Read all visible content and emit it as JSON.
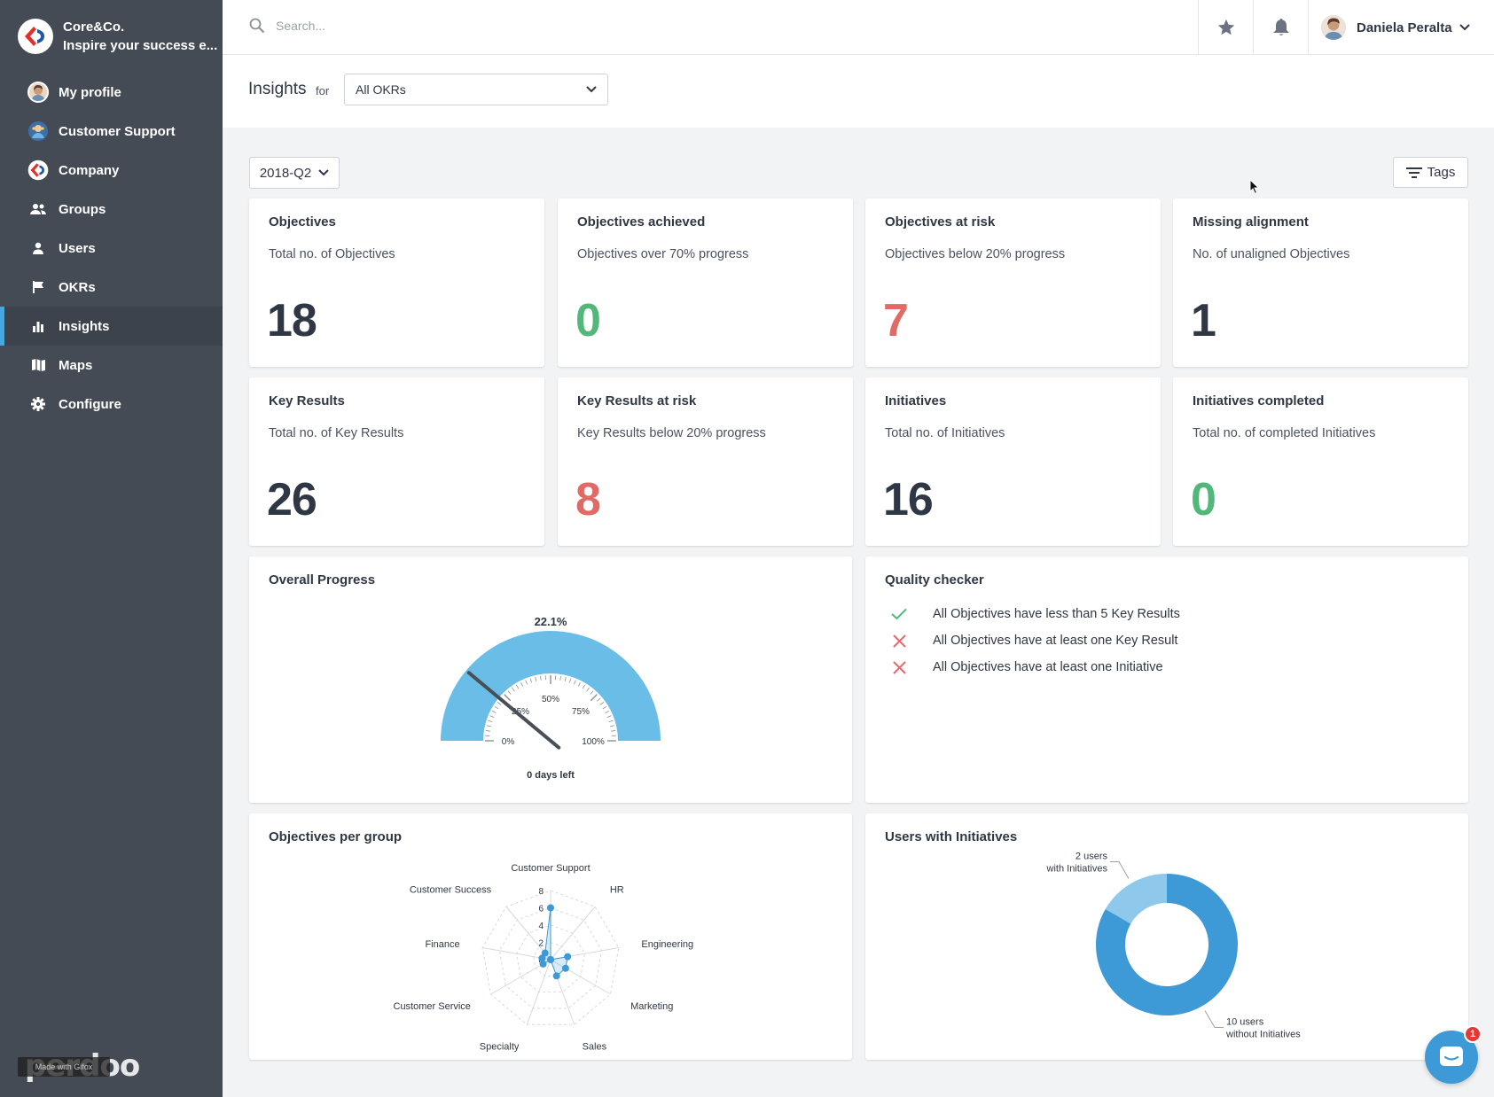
{
  "org": {
    "name": "Core&Co.",
    "tagline": "Inspire your success e..."
  },
  "nav": [
    {
      "label": "My profile",
      "icon": "avatar"
    },
    {
      "label": "Customer Support",
      "icon": "team-avatar"
    },
    {
      "label": "Company",
      "icon": "company-logo"
    },
    {
      "label": "Groups",
      "icon": "groups-icon"
    },
    {
      "label": "Users",
      "icon": "user-icon"
    },
    {
      "label": "OKRs",
      "icon": "flag-icon"
    },
    {
      "label": "Insights",
      "icon": "bar-chart-icon",
      "active": true
    },
    {
      "label": "Maps",
      "icon": "map-icon"
    },
    {
      "label": "Configure",
      "icon": "gear-icon"
    }
  ],
  "brand_watermark": "perdoo",
  "gifox_badge": "Made with Gifox",
  "topbar": {
    "search_placeholder": "Search...",
    "user_name": "Daniela Peralta"
  },
  "header": {
    "title": "Insights",
    "for_label": "for",
    "okr_filter": "All OKRs"
  },
  "period": "2018-Q2",
  "tags_label": "Tags",
  "stats": [
    {
      "title": "Objectives",
      "subtitle": "Total no. of Objectives",
      "value": "18",
      "tone": "neutral"
    },
    {
      "title": "Objectives achieved",
      "subtitle": "Objectives over 70% progress",
      "value": "0",
      "tone": "green"
    },
    {
      "title": "Objectives at risk",
      "subtitle": "Objectives below 20% progress",
      "value": "7",
      "tone": "red"
    },
    {
      "title": "Missing alignment",
      "subtitle": "No. of unaligned Objectives",
      "value": "1",
      "tone": "neutral"
    },
    {
      "title": "Key Results",
      "subtitle": "Total no. of Key Results",
      "value": "26",
      "tone": "neutral"
    },
    {
      "title": "Key Results at risk",
      "subtitle": "Key Results below 20% progress",
      "value": "8",
      "tone": "red"
    },
    {
      "title": "Initiatives",
      "subtitle": "Total no. of Initiatives",
      "value": "16",
      "tone": "neutral"
    },
    {
      "title": "Initiatives completed",
      "subtitle": "Total no. of completed Initiatives",
      "value": "0",
      "tone": "green"
    }
  ],
  "overall_progress": {
    "title": "Overall Progress",
    "value_label": "22.1%",
    "value": 22.1,
    "days_left": "0 days left",
    "scale_labels": [
      "0%",
      "25%",
      "50%",
      "75%",
      "100%"
    ]
  },
  "quality_checker": {
    "title": "Quality checker",
    "items": [
      {
        "text": "All Objectives have less than 5 Key Results",
        "status": "pass"
      },
      {
        "text": "All Objectives have at least one Key Result",
        "status": "fail"
      },
      {
        "text": "All Objectives have at least one Initiative",
        "status": "fail"
      }
    ]
  },
  "chart_data": [
    {
      "type": "radar",
      "title": "Objectives per group",
      "categories": [
        "Customer Support",
        "HR",
        "Engineering",
        "Marketing",
        "Sales",
        "Specialty",
        "Customer Service",
        "Finance",
        "Customer Success"
      ],
      "values": [
        6,
        0,
        2,
        2,
        2,
        0,
        1,
        1,
        1
      ],
      "axis_ticks": [
        0,
        2,
        4,
        6,
        8
      ],
      "rmax": 8
    },
    {
      "type": "pie",
      "title": "Users with Initiatives",
      "donut": true,
      "slices": [
        {
          "label_line1": "2 users",
          "label_line2": "with Initiatives",
          "value": 2,
          "color": "#8ec8ea"
        },
        {
          "label_line1": "10 users",
          "label_line2": "without Initiatives",
          "value": 10,
          "color": "#3d9ad6"
        }
      ]
    }
  ],
  "chat_badge": "1",
  "colors": {
    "accent": "#49a7e0",
    "green": "#52b77a",
    "red": "#e06a66",
    "sidebar": "#454b55"
  }
}
